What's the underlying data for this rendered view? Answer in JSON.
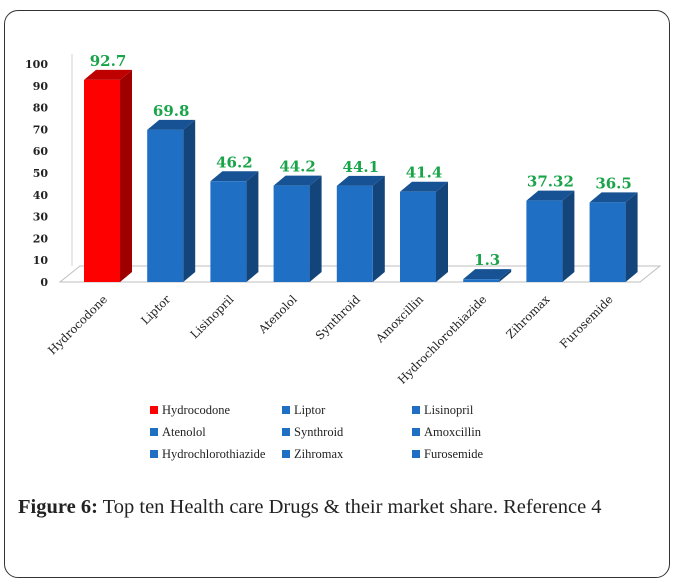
{
  "chart_data": {
    "type": "bar",
    "categories": [
      "Hydrocodone",
      "Liptor",
      "Lisinopril",
      "Atenolol",
      "Synthroid",
      "Amoxcillin",
      "Hydrochlorothiazide",
      "Zihromax",
      "Furosemide"
    ],
    "values": [
      92.7,
      69.8,
      46.2,
      44.2,
      44.1,
      41.4,
      1.3,
      37.32,
      36.5
    ],
    "value_labels": [
      "92.7",
      "69.8",
      "46.2",
      "44.2",
      "44.1",
      "41.4",
      "1.3",
      "37.32",
      "36.5"
    ],
    "ylim": [
      0,
      100
    ],
    "yticks": [
      0,
      10,
      20,
      30,
      40,
      50,
      60,
      70,
      80,
      90,
      100
    ],
    "bar_colors": [
      "#ff0000",
      "#1f6fc5",
      "#1f6fc5",
      "#1f6fc5",
      "#1f6fc5",
      "#1f6fc5",
      "#1f6fc5",
      "#1f6fc5",
      "#1f6fc5"
    ],
    "data_label_color": "#1aa44a",
    "grid": false,
    "legend_placement": "bottom"
  },
  "caption": {
    "label": "Figure 6:",
    "text": " Top ten Health care Drugs & their market share. Reference 4"
  }
}
